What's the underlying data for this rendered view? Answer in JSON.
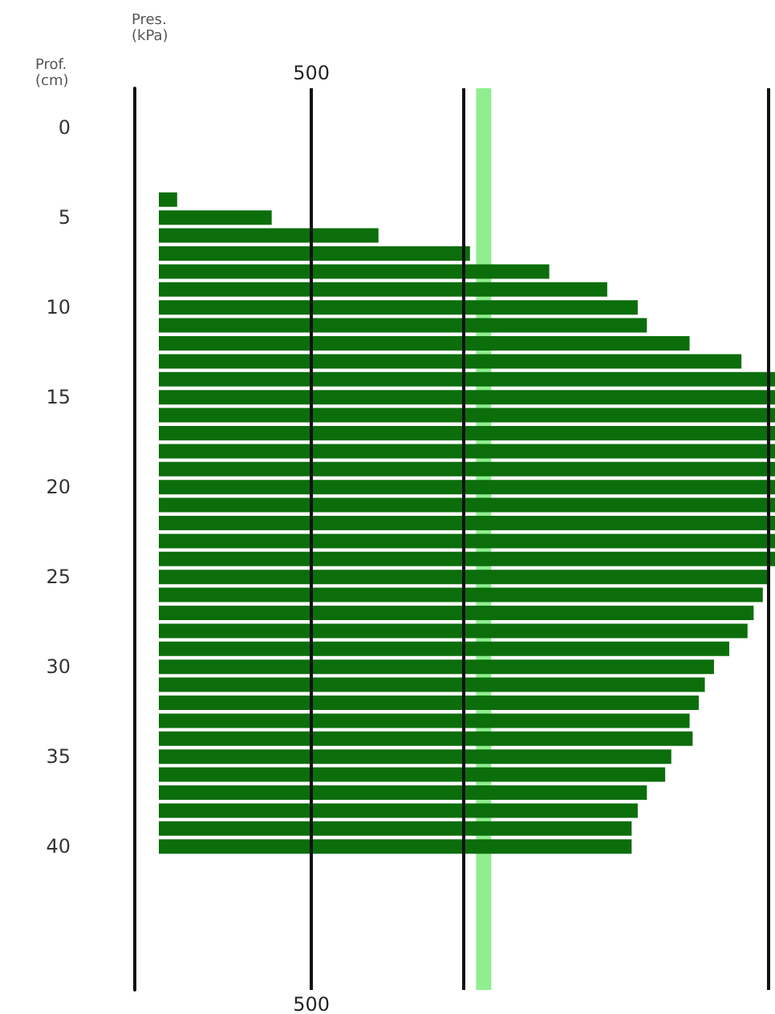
{
  "chart_data": {
    "type": "bar",
    "orientation": "horizontal",
    "ylabel": "Prof. (cm)",
    "categories": [
      "0",
      null,
      null,
      null,
      null,
      "5",
      null,
      null,
      null,
      null,
      "10",
      null,
      null,
      null,
      null,
      "15",
      null,
      null,
      null,
      null,
      "20",
      null,
      null,
      null,
      null,
      "25",
      null,
      null,
      null,
      null,
      "30",
      null,
      null,
      null,
      null,
      "35",
      null,
      null,
      null,
      null,
      "40"
    ],
    "values": [
      null,
      null,
      null,
      null,
      60,
      370,
      720,
      1020,
      1280,
      1470,
      1570,
      1600,
      1740,
      1910,
      2020,
      2020,
      2020,
      2020,
      2020,
      2020,
      2020,
      2020,
      2020,
      2020,
      2020,
      2000,
      1980,
      1950,
      1930,
      1870,
      1820,
      1790,
      1770,
      1740,
      1750,
      1680,
      1660,
      1600,
      1570,
      1550,
      1550
    ],
    "color": "#0b6e0b",
    "xlim": [
      0,
      2020
    ],
    "xticks": [
      500,
      {
        "value": 1000,
        "label": null
      },
      {
        "value": 2000,
        "label": null
      }
    ],
    "grid": "x",
    "bands": [
      {
        "axis": "x",
        "from": 1040,
        "to": 1090,
        "color": "#90ee90"
      }
    ],
    "annotations": [
      "Pres. (kPa)",
      "500"
    ]
  }
}
